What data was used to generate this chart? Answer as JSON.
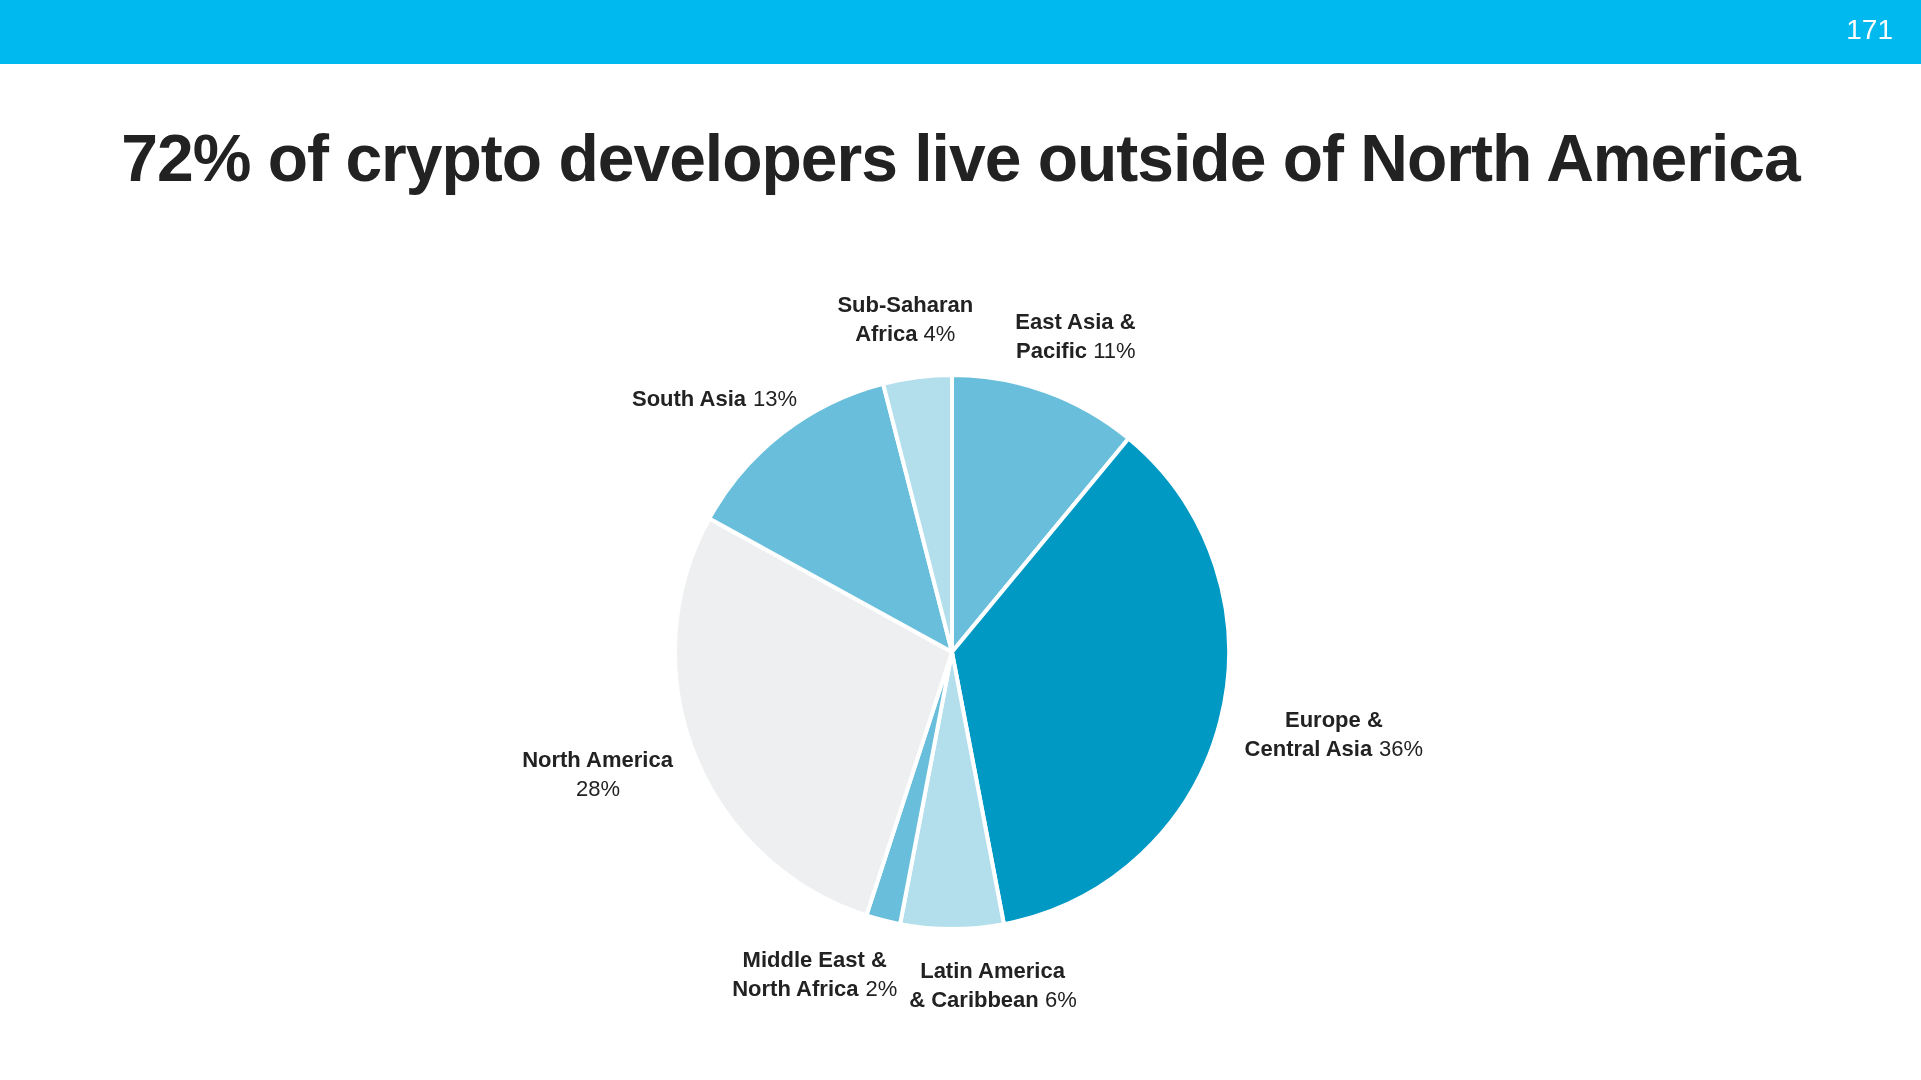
{
  "chart_data": {
    "type": "pie",
    "title": "72% of crypto developers live outside of North America",
    "categories": [
      "East Asia & Pacific",
      "Europe & Central Asia",
      "Latin America & Caribbean",
      "Middle East & North Africa",
      "North America",
      "South Asia",
      "Sub-Saharan Africa"
    ],
    "values": [
      11,
      36,
      6,
      2,
      28,
      13,
      4
    ],
    "value_labels": [
      "11%",
      "36%",
      "6%",
      "2%",
      "28%",
      "13%",
      "4%"
    ],
    "colors": [
      "#69bfdb",
      "#0099c4",
      "#b3dfec",
      "#69bfdb",
      "#eeeff0",
      "#69bfdb",
      "#b3dfec"
    ],
    "annotations": [
      "171"
    ]
  }
}
